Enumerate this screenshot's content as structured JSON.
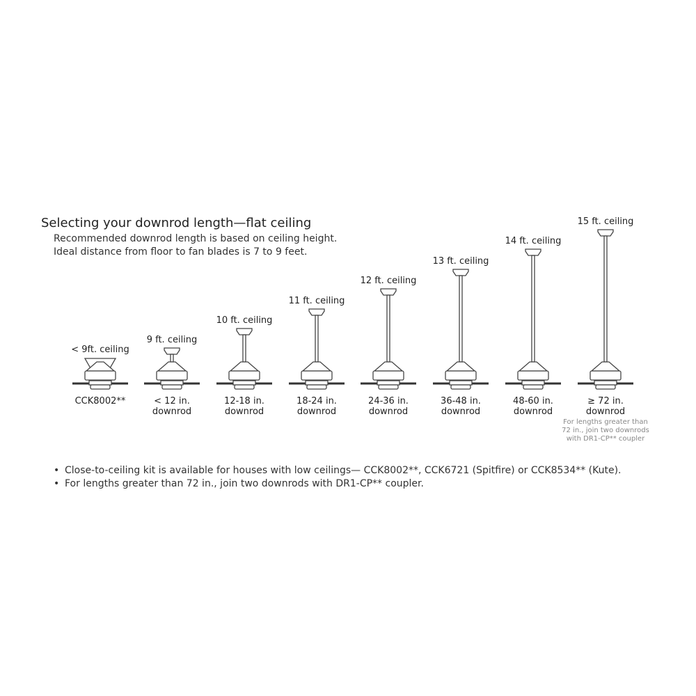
{
  "title": "Selecting your downrod length—flat ceiling",
  "subtitle_lines": [
    "Recommended downrod length is based on ceiling height.",
    "Ideal distance from floor to fan blades is 7 to 9 feet."
  ],
  "columns": [
    {
      "ceiling": "< 9ft. ceiling",
      "downrod": "CCK8002**",
      "downrod2": "",
      "close_to_ceiling": true
    },
    {
      "ceiling": "9 ft. ceiling",
      "downrod": "< 12 in.",
      "downrod2": "downrod"
    },
    {
      "ceiling": "10 ft. ceiling",
      "downrod": "12-18 in.",
      "downrod2": "downrod"
    },
    {
      "ceiling": "11 ft. ceiling",
      "downrod": "18-24 in.",
      "downrod2": "downrod"
    },
    {
      "ceiling": "12 ft. ceiling",
      "downrod": "24-36 in.",
      "downrod2": "downrod"
    },
    {
      "ceiling": "13 ft. ceiling",
      "downrod": "36-48 in.",
      "downrod2": "downrod"
    },
    {
      "ceiling": "14 ft. ceiling",
      "downrod": "48-60 in.",
      "downrod2": "downrod"
    },
    {
      "ceiling": "15 ft. ceiling",
      "downrod": "≥ 72 in.",
      "downrod2": "downrod",
      "note": "For lengths greater than 72 in., join two downrods with DR1-CP** coupler"
    }
  ],
  "bullets": [
    "Close-to-ceiling kit is available for houses with low ceilings— CCK8002**, CCK6721 (Spitfire) or CCK8534** (Kute).",
    "For lengths greater than 72 in., join two downrods with DR1-CP** coupler."
  ],
  "colors": {
    "line": "#444444",
    "note": "#888888"
  }
}
